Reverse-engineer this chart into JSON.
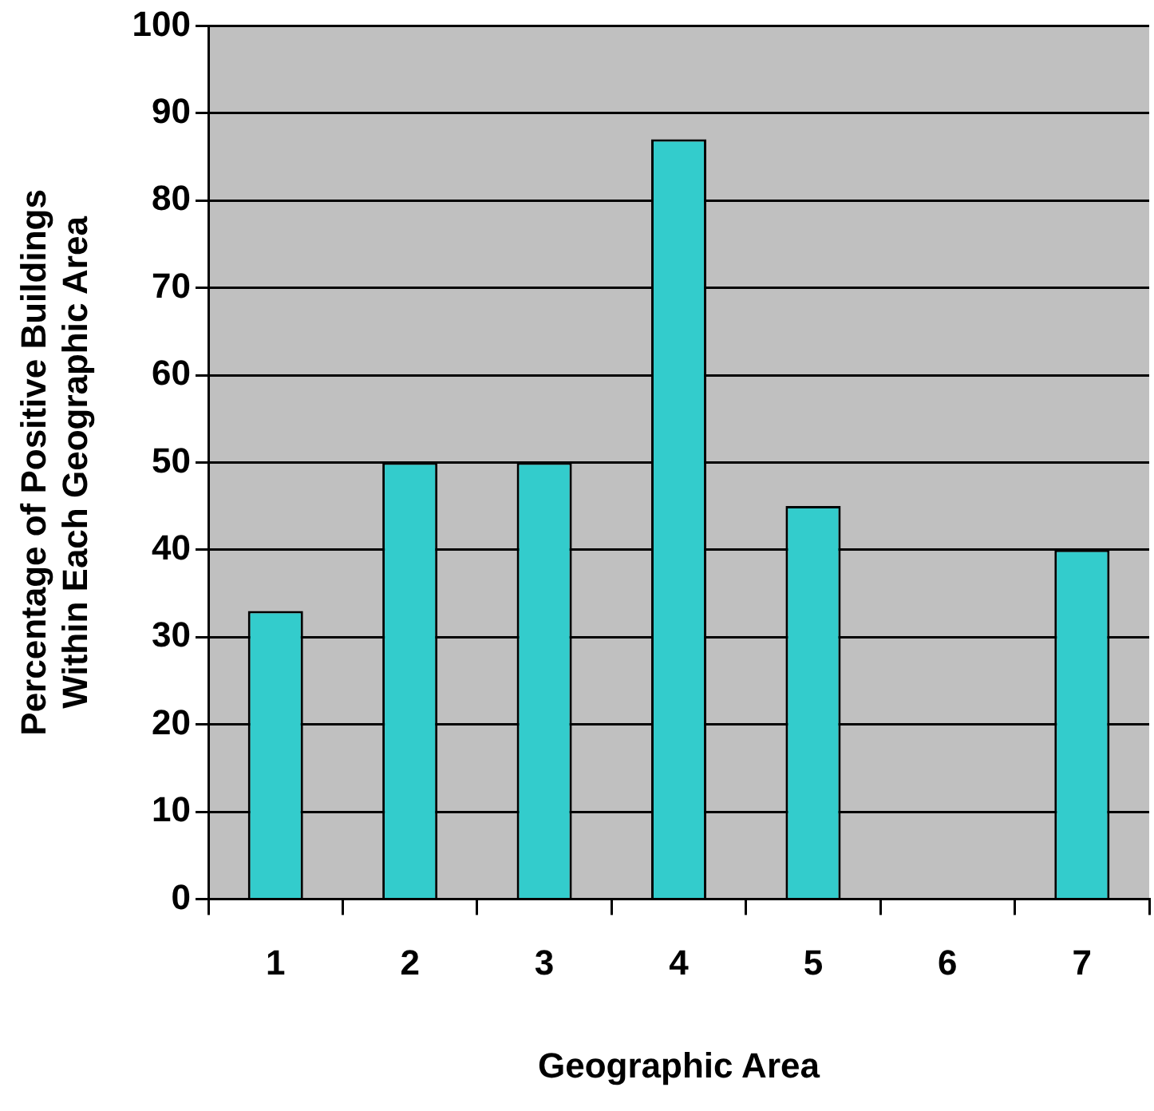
{
  "chart_data": {
    "type": "bar",
    "xlabel": "Geographic Area",
    "ylabel": "Percentage of Positive Buildings\nWithin Each Geographic Area",
    "categories": [
      "1",
      "2",
      "3",
      "4",
      "5",
      "6",
      "7"
    ],
    "values": [
      33,
      50,
      50,
      87,
      45,
      0,
      40
    ],
    "color": "#33cccc",
    "ylim": [
      0,
      100
    ],
    "yticks": [
      0,
      10,
      20,
      30,
      40,
      50,
      60,
      70,
      80,
      90,
      100
    ],
    "grid": "y",
    "legend": false
  }
}
